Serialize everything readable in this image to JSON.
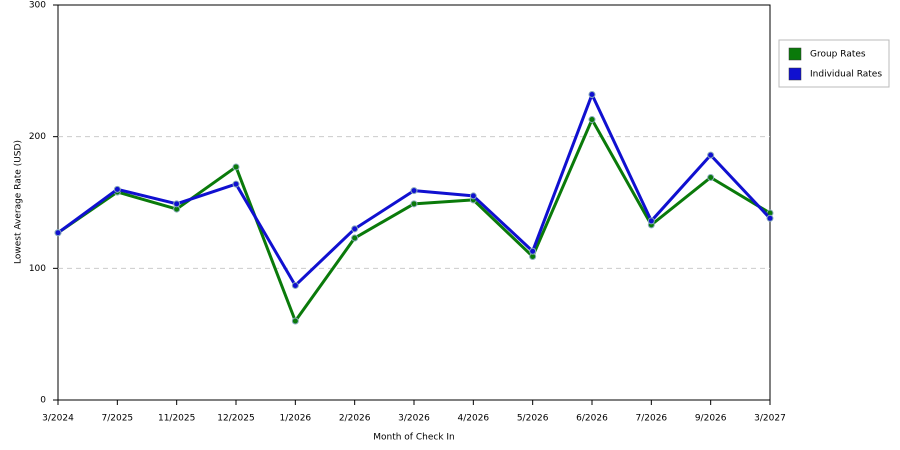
{
  "chart_data": {
    "type": "line",
    "x_label": "Month of Check In",
    "y_label": "Lowest Average Rate (USD)",
    "categories": [
      "3/2024",
      "7/2025",
      "11/2025",
      "12/2025",
      "1/2026",
      "2/2026",
      "3/2026",
      "4/2026",
      "5/2026",
      "6/2026",
      "7/2026",
      "9/2026",
      "3/2027"
    ],
    "series": [
      {
        "name": "Group Rates",
        "color": "#0a7a0a",
        "values": [
          127,
          158,
          145,
          177,
          60,
          123,
          149,
          152,
          109,
          213,
          133,
          169,
          142
        ]
      },
      {
        "name": "Individual Rates",
        "color": "#1010d0",
        "values": [
          127,
          160,
          149,
          164,
          87,
          130,
          159,
          155,
          113,
          232,
          136,
          186,
          138
        ]
      }
    ],
    "ylim": [
      0,
      300
    ],
    "yticks": [
      0,
      100,
      200,
      300
    ],
    "grid": true,
    "legend": "right"
  }
}
